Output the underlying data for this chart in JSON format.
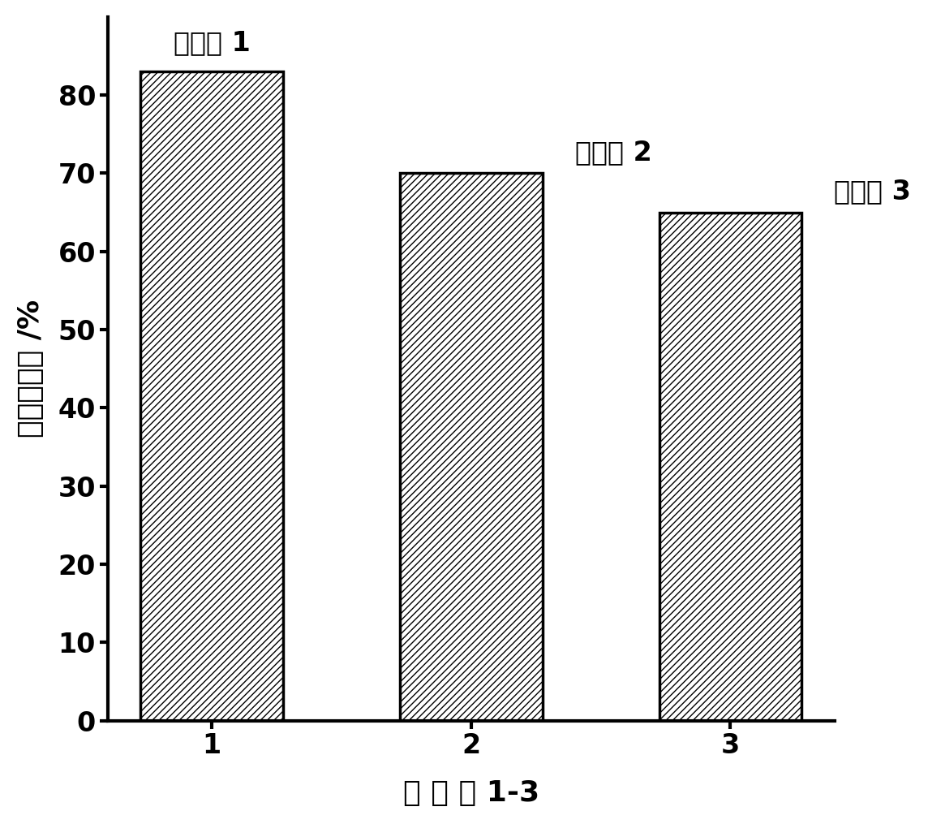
{
  "categories": [
    "1",
    "2",
    "3"
  ],
  "values": [
    83,
    70,
    65
  ],
  "bar_annotations": [
    "实施例 1",
    "实施例 2",
    "实施例 3"
  ],
  "xlabel": "实 施 例 1-3",
  "ylabel": "法拉第效率 /%",
  "ylim": [
    0,
    90
  ],
  "yticks": [
    0,
    10,
    20,
    30,
    40,
    50,
    60,
    70,
    80
  ],
  "bar_color": "white",
  "hatch": "////",
  "edgecolor": "black",
  "background_color": "white",
  "label_fontsize": 26,
  "tick_fontsize": 24,
  "annotation_fontsize": 24,
  "bar_width": 0.55
}
